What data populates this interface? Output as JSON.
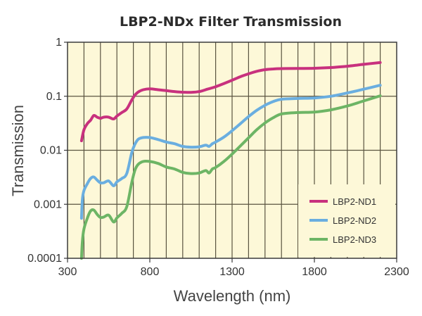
{
  "chart_data": {
    "type": "line",
    "title": "LBP2-NDx Filter Transmission",
    "xlabel": "Wavelength (nm)",
    "ylabel": "Transmission",
    "xlim": [
      300,
      2300
    ],
    "ylim": [
      0.0001,
      1
    ],
    "yscale": "log",
    "xticks": [
      300,
      800,
      1300,
      1800,
      2300
    ],
    "xtick_labels": [
      "300",
      "800",
      "1300",
      "1800",
      "2300"
    ],
    "yticks": [
      1,
      0.1,
      0.01,
      0.001,
      0.0001
    ],
    "ytick_labels": [
      "1",
      "0.1",
      "0.01",
      "0.001",
      "0.0001"
    ],
    "x_minor_grid_step": 100,
    "grid": true,
    "legend_position": "bottom-right",
    "background_color": "#fdf8d8",
    "series": [
      {
        "name": "LBP2-ND1",
        "color": "#c8317e",
        "x": [
          385,
          400,
          420,
          440,
          460,
          480,
          500,
          520,
          550,
          580,
          600,
          630,
          660,
          690,
          710,
          730,
          760,
          800,
          850,
          900,
          950,
          1000,
          1050,
          1100,
          1150,
          1200,
          1250,
          1300,
          1350,
          1400,
          1450,
          1500,
          1550,
          1600,
          1700,
          1800,
          1900,
          2000,
          2100,
          2200
        ],
        "y": [
          0.015,
          0.024,
          0.031,
          0.036,
          0.044,
          0.041,
          0.039,
          0.041,
          0.041,
          0.038,
          0.043,
          0.05,
          0.058,
          0.085,
          0.105,
          0.12,
          0.132,
          0.137,
          0.132,
          0.127,
          0.122,
          0.119,
          0.118,
          0.122,
          0.135,
          0.15,
          0.172,
          0.198,
          0.23,
          0.26,
          0.29,
          0.31,
          0.32,
          0.325,
          0.327,
          0.33,
          0.34,
          0.36,
          0.39,
          0.42
        ]
      },
      {
        "name": "LBP2-ND2",
        "color": "#6aaee0",
        "x": [
          385,
          390,
          400,
          420,
          440,
          460,
          480,
          500,
          520,
          550,
          580,
          600,
          630,
          660,
          690,
          710,
          730,
          760,
          800,
          850,
          900,
          950,
          1000,
          1050,
          1100,
          1140,
          1160,
          1180,
          1200,
          1250,
          1300,
          1350,
          1400,
          1450,
          1500,
          1550,
          1600,
          1700,
          1800,
          1900,
          2000,
          2100,
          2200
        ],
        "y": [
          0.00055,
          0.0012,
          0.0018,
          0.0024,
          0.003,
          0.0032,
          0.0028,
          0.0025,
          0.0025,
          0.0027,
          0.0022,
          0.0026,
          0.003,
          0.0037,
          0.009,
          0.013,
          0.016,
          0.0172,
          0.0172,
          0.0158,
          0.0142,
          0.0132,
          0.0118,
          0.0114,
          0.0116,
          0.0124,
          0.0118,
          0.0132,
          0.0142,
          0.0175,
          0.023,
          0.031,
          0.042,
          0.055,
          0.068,
          0.08,
          0.088,
          0.091,
          0.093,
          0.1,
          0.115,
          0.135,
          0.16
        ]
      },
      {
        "name": "LBP2-ND3",
        "color": "#6db565",
        "x": [
          385,
          390,
          400,
          420,
          440,
          460,
          480,
          500,
          520,
          550,
          580,
          600,
          630,
          660,
          690,
          710,
          730,
          760,
          800,
          850,
          900,
          950,
          1000,
          1050,
          1100,
          1140,
          1160,
          1180,
          1200,
          1250,
          1300,
          1350,
          1400,
          1450,
          1500,
          1550,
          1600,
          1700,
          1800,
          1900,
          2000,
          2100,
          2200
        ],
        "y": [
          0.0001,
          0.0002,
          0.00035,
          0.00055,
          0.00075,
          0.00078,
          0.00065,
          0.00057,
          0.00058,
          0.00063,
          0.00047,
          0.00056,
          0.00068,
          0.0009,
          0.0025,
          0.0043,
          0.0055,
          0.0062,
          0.0062,
          0.0057,
          0.0049,
          0.0045,
          0.0039,
          0.0037,
          0.0038,
          0.0042,
          0.0038,
          0.0045,
          0.0048,
          0.0062,
          0.0085,
          0.012,
          0.017,
          0.024,
          0.032,
          0.04,
          0.047,
          0.05,
          0.051,
          0.056,
          0.066,
          0.082,
          0.102
        ]
      }
    ]
  }
}
